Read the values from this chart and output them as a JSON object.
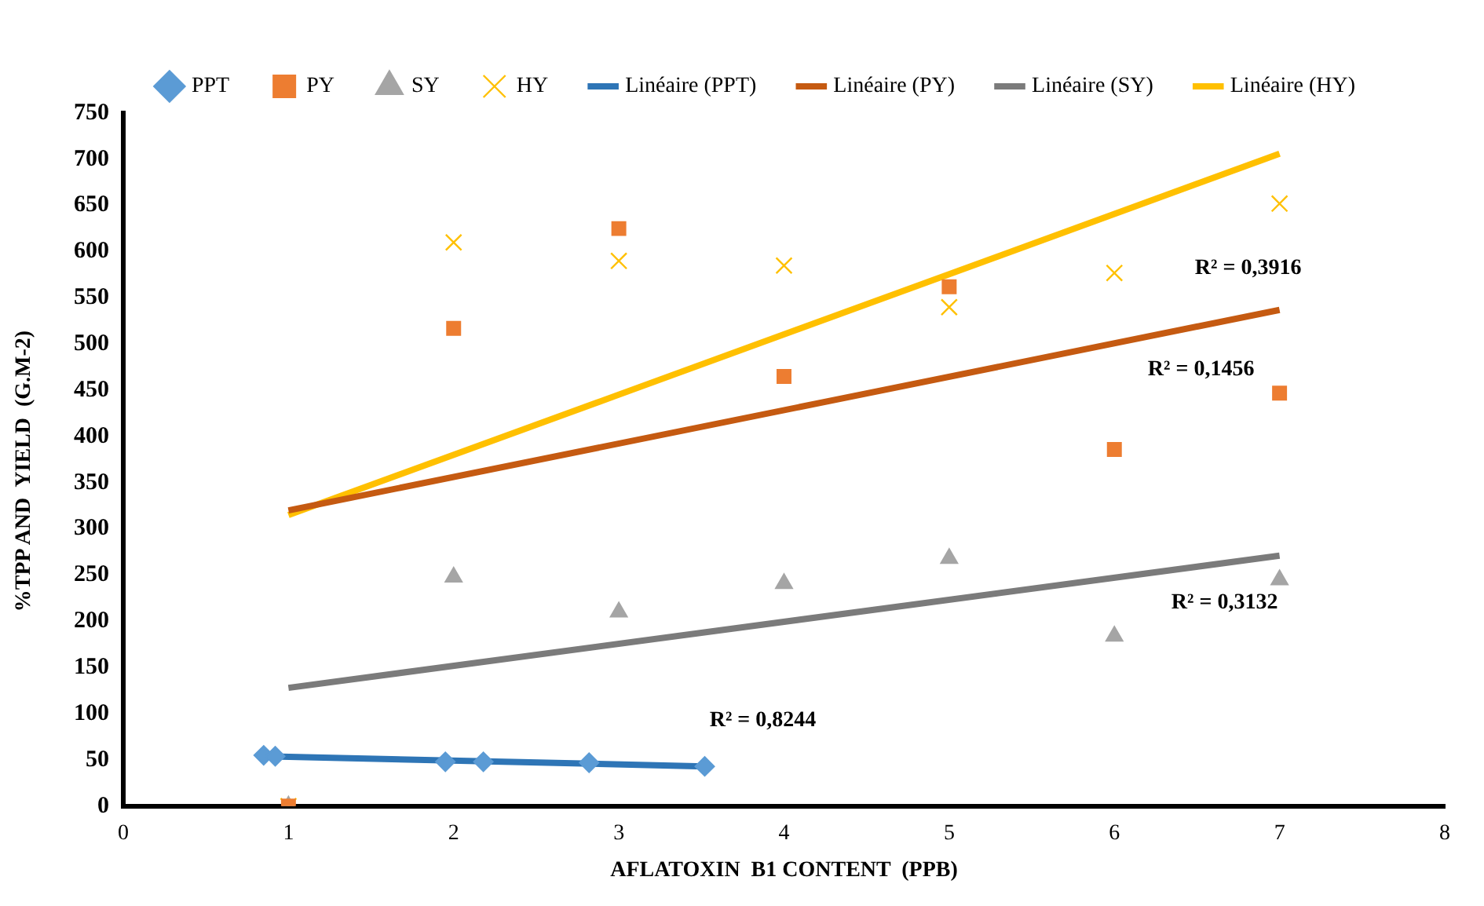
{
  "chart_data": {
    "type": "scatter",
    "xlabel": "AFLATOXIN  B1 CONTENT  (PPB)",
    "ylabel": "%TPP AND  YIELD  (G.M-2)",
    "xlim": [
      0,
      8
    ],
    "xticks": [
      0,
      1,
      2,
      3,
      4,
      5,
      6,
      7,
      8
    ],
    "ylim": [
      0,
      750
    ],
    "yticks": [
      0,
      50,
      100,
      150,
      200,
      250,
      300,
      350,
      400,
      450,
      500,
      550,
      600,
      650,
      700,
      750
    ],
    "grid": false,
    "legend": "top",
    "series": [
      {
        "name": "PPT",
        "marker": "diamond",
        "color": "#5b9bd5",
        "x": [
          0.85,
          0.92,
          1.95,
          2.18,
          2.82,
          3.52
        ],
        "values": [
          55,
          54,
          48,
          48,
          47,
          43
        ]
      },
      {
        "name": "PY",
        "marker": "square",
        "color": "#ed7d31",
        "x": [
          1,
          2,
          3,
          4,
          5,
          6,
          7
        ],
        "values": [
          0,
          517,
          625,
          465,
          562,
          386,
          447
        ]
      },
      {
        "name": "SY",
        "marker": "triangle",
        "color": "#a5a5a5",
        "x": [
          1,
          2,
          3,
          4,
          5,
          6,
          7
        ],
        "values": [
          0,
          248,
          210,
          241,
          268,
          184,
          245
        ]
      },
      {
        "name": "HY",
        "marker": "cross",
        "color": "#ffc000",
        "x": [
          1,
          2,
          3,
          4,
          5,
          6,
          7
        ],
        "values": [
          0,
          610,
          590,
          585,
          540,
          577,
          652
        ]
      },
      {
        "name": "Linéaire (PPT)",
        "type": "line",
        "marker": "none",
        "line_style": "solid",
        "color": "#2e75b6",
        "x": [
          0.85,
          3.52
        ],
        "values": [
          54,
          43
        ]
      },
      {
        "name": "Linéaire (PY)",
        "type": "line",
        "marker": "none",
        "line_style": "solid",
        "color": "#c55a11",
        "x": [
          1,
          7
        ],
        "values": [
          320,
          537
        ]
      },
      {
        "name": "Linéaire (SY)",
        "type": "line",
        "marker": "none",
        "line_style": "solid",
        "color": "#7b7b7b",
        "x": [
          1,
          7
        ],
        "values": [
          128,
          271
        ]
      },
      {
        "name": "Linéaire (HY)",
        "type": "line",
        "marker": "none",
        "line_style": "solid",
        "color": "#ffc000",
        "x": [
          1,
          7
        ],
        "values": [
          315,
          706
        ]
      }
    ],
    "annotations": [
      "R² = 0,8244",
      "R² = 0,1456",
      "R² = 0,3132",
      "R² = 0,3916"
    ]
  }
}
